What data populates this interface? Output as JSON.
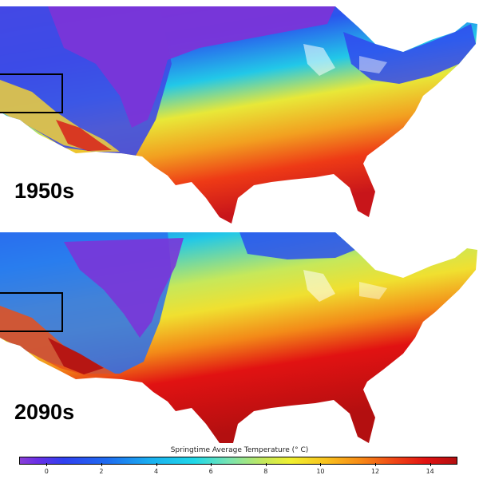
{
  "panels": [
    {
      "id": "1950s",
      "label": "1950s"
    },
    {
      "id": "2090s",
      "label": "2090s"
    }
  ],
  "legend": {
    "title": "Springtime Average Temperature (° C)",
    "min": -1,
    "max": 15,
    "ticks": [
      0,
      2,
      4,
      6,
      8,
      10,
      12,
      14
    ],
    "tick_labels": [
      "0",
      "2",
      "4",
      "6",
      "8",
      "10",
      "12",
      "14"
    ],
    "colormap": "purple-blue-cyan-yellow-red"
  },
  "colors": {
    "cold": "#7a35d8",
    "cool": "#2a55ee",
    "mild": "#22c8e8",
    "warm": "#e8e838",
    "hot": "#f06a18",
    "hottest": "#c8151a",
    "highlight_box": "#000000"
  }
}
